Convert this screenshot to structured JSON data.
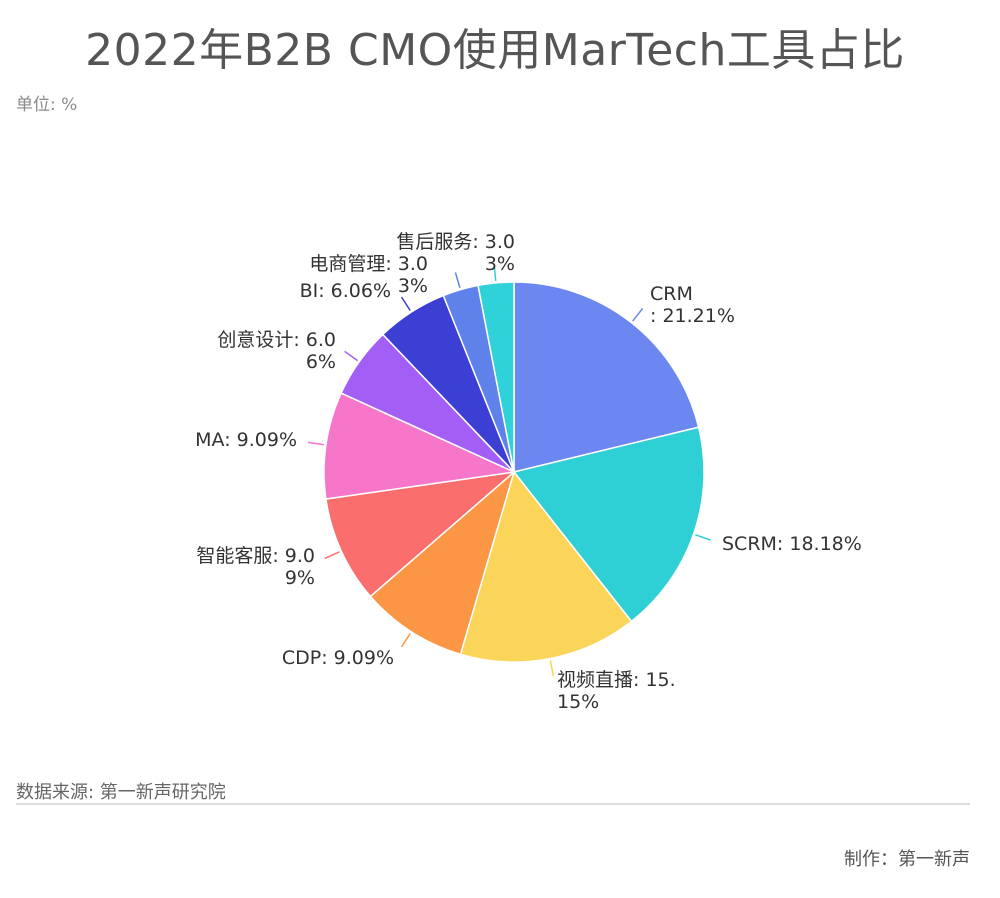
{
  "title": "2022年B2B CMO使用MarTech工具占比",
  "unit_label": "单位: %",
  "source_label": "数据来源: 第一新声研究院",
  "credit_label": "制作：第一新声",
  "chart_data": {
    "type": "pie",
    "title": "2022年B2B CMO使用MarTech工具占比",
    "unit": "%",
    "slices": [
      {
        "name": "CRM",
        "value": 21.21,
        "color": "#6c87ef",
        "label_lines": [
          "CRM",
          ": 21.21%"
        ]
      },
      {
        "name": "SCRM",
        "value": 18.18,
        "color": "#2fcfd6",
        "label_lines": [
          "SCRM: 18.18%"
        ]
      },
      {
        "name": "视频直播",
        "value": 15.15,
        "color": "#fbd45a",
        "label_lines": [
          "视频直播: 15.",
          "15%"
        ]
      },
      {
        "name": "CDP",
        "value": 9.09,
        "color": "#fb9644",
        "label_lines": [
          "CDP: 9.09%"
        ]
      },
      {
        "name": "智能客服",
        "value": 9.09,
        "color": "#fa6e6e",
        "label_lines": [
          "智能客服: 9.0",
          "9%"
        ]
      },
      {
        "name": "MA",
        "value": 9.09,
        "color": "#f676c9",
        "label_lines": [
          "MA: 9.09%"
        ]
      },
      {
        "name": "创意设计",
        "value": 6.06,
        "color": "#a25ef5",
        "label_lines": [
          "创意设计: 6.0",
          "6%"
        ]
      },
      {
        "name": "BI",
        "value": 6.06,
        "color": "#3b3fd4",
        "label_lines": [
          "BI: 6.06%"
        ]
      },
      {
        "name": "电商管理",
        "value": 3.03,
        "color": "#5f82ea",
        "label_lines": [
          "电商管理: 3.0",
          "3%"
        ]
      },
      {
        "name": "售后服务",
        "value": 3.03,
        "color": "#2ed2d8",
        "label_lines": [
          "售后服务: 3.0",
          "3%"
        ]
      }
    ]
  }
}
